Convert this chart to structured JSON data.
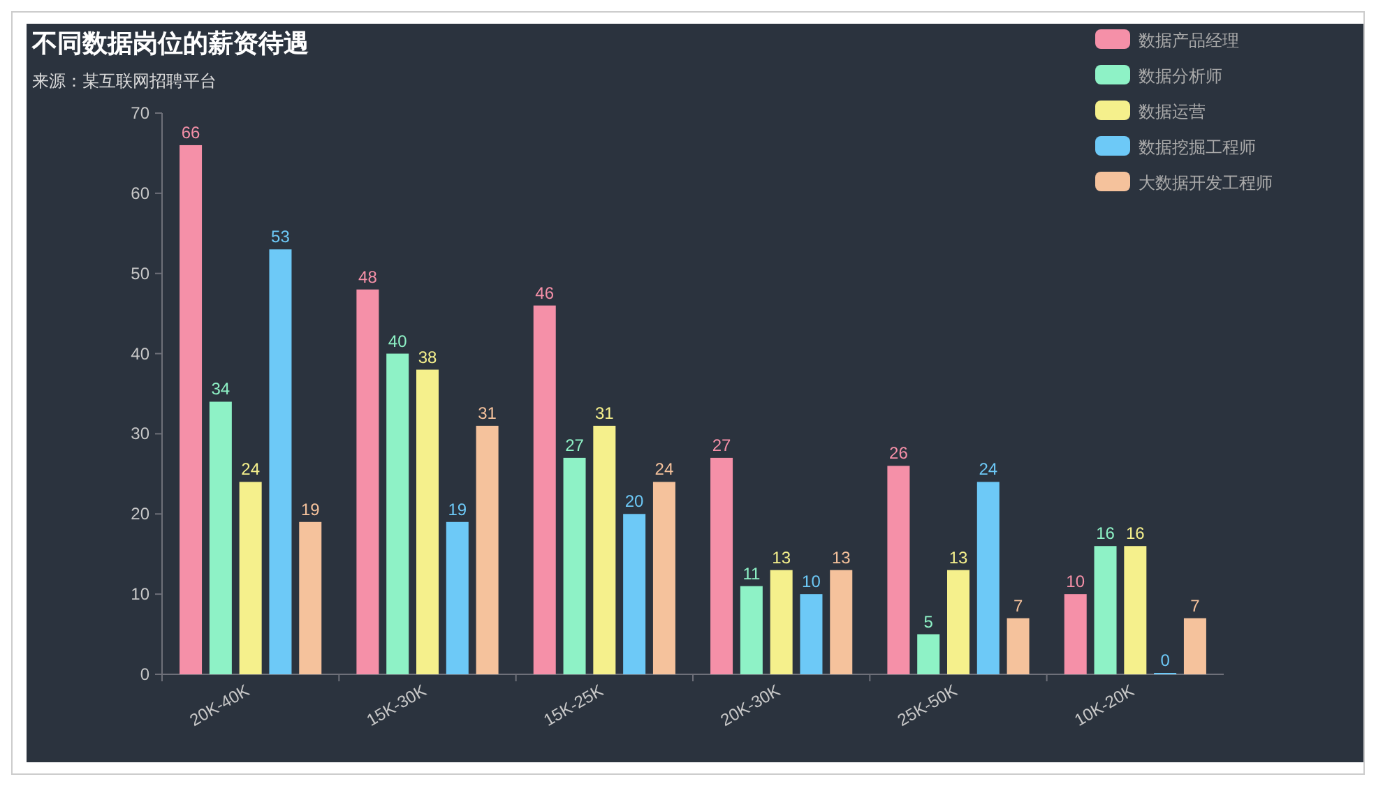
{
  "chart_data": {
    "type": "bar",
    "title": "不同数据岗位的薪资待遇",
    "subtitle": "来源：某互联网招聘平台",
    "categories": [
      "20K-40K",
      "15K-30K",
      "15K-25K",
      "20K-30K",
      "25K-50K",
      "10K-20K"
    ],
    "series": [
      {
        "name": "数据产品经理",
        "color": "#f590a8",
        "values": [
          66,
          48,
          46,
          27,
          26,
          10
        ]
      },
      {
        "name": "数据分析师",
        "color": "#8ef2c6",
        "values": [
          34,
          40,
          27,
          11,
          5,
          16
        ]
      },
      {
        "name": "数据运营",
        "color": "#f5f08c",
        "values": [
          24,
          38,
          31,
          13,
          13,
          16
        ]
      },
      {
        "name": "数据挖掘工程师",
        "color": "#6dc9f7",
        "values": [
          53,
          19,
          20,
          10,
          24,
          0
        ]
      },
      {
        "name": "大数据开发工程师",
        "color": "#f5c29c",
        "values": [
          19,
          31,
          24,
          13,
          7,
          7
        ]
      }
    ],
    "ylim": [
      0,
      70
    ],
    "yticks": [
      0,
      10,
      20,
      30,
      40,
      50,
      60,
      70
    ],
    "data_labels": true,
    "legend": "top right",
    "grid": false
  }
}
